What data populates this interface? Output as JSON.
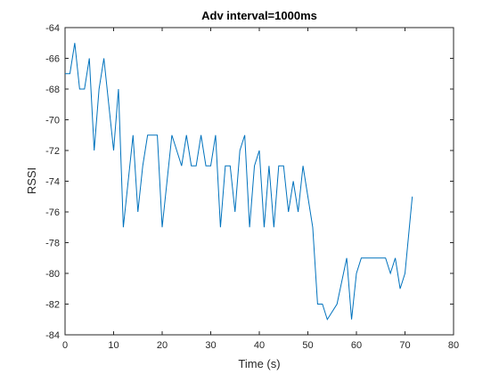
{
  "chart_data": {
    "type": "line",
    "title": "Adv interval=1000ms",
    "xlabel": "Time (s)",
    "ylabel": "RSSI",
    "xlim": [
      0,
      80
    ],
    "ylim": [
      -84,
      -64
    ],
    "xticks": [
      0,
      10,
      20,
      30,
      40,
      50,
      60,
      70,
      80
    ],
    "yticks": [
      -84,
      -82,
      -80,
      -78,
      -76,
      -74,
      -72,
      -70,
      -68,
      -66,
      -64
    ],
    "grid": false,
    "line_color": "#0072BD",
    "series": [
      {
        "x": [
          0,
          1,
          2,
          3,
          4,
          5,
          6,
          7,
          8,
          9,
          10,
          11,
          12,
          13,
          14,
          15,
          16,
          17,
          18,
          19,
          20,
          21,
          22,
          23,
          24,
          25,
          26,
          27,
          28,
          29,
          30,
          31,
          32,
          33,
          34,
          35,
          36,
          37,
          38,
          39,
          40,
          41,
          42,
          43,
          44,
          45,
          46,
          47,
          48,
          49,
          50,
          51,
          52,
          53,
          54,
          56,
          58,
          59,
          60,
          61,
          62,
          63,
          64,
          65,
          66,
          67,
          68,
          69,
          70,
          71.5
        ],
        "values": [
          -67,
          -67,
          -65,
          -68,
          -68,
          -66,
          -72,
          -68,
          -66,
          -69,
          -72,
          -68,
          -77,
          -74,
          -71,
          -76,
          -73,
          -71,
          -71,
          -71,
          -77,
          -74,
          -71,
          -72,
          -73,
          -71,
          -73,
          -73,
          -71,
          -73,
          -73,
          -71,
          -77,
          -73,
          -73,
          -76,
          -72,
          -71,
          -77,
          -73,
          -72,
          -77,
          -73,
          -77,
          -73,
          -73,
          -76,
          -74,
          -76,
          -73,
          -75,
          -77,
          -82,
          -82,
          -83,
          -82,
          -79,
          -83,
          -80,
          -79,
          -79,
          -79,
          -79,
          -79,
          -79,
          -80,
          -79,
          -81,
          -80,
          -75
        ]
      }
    ]
  }
}
